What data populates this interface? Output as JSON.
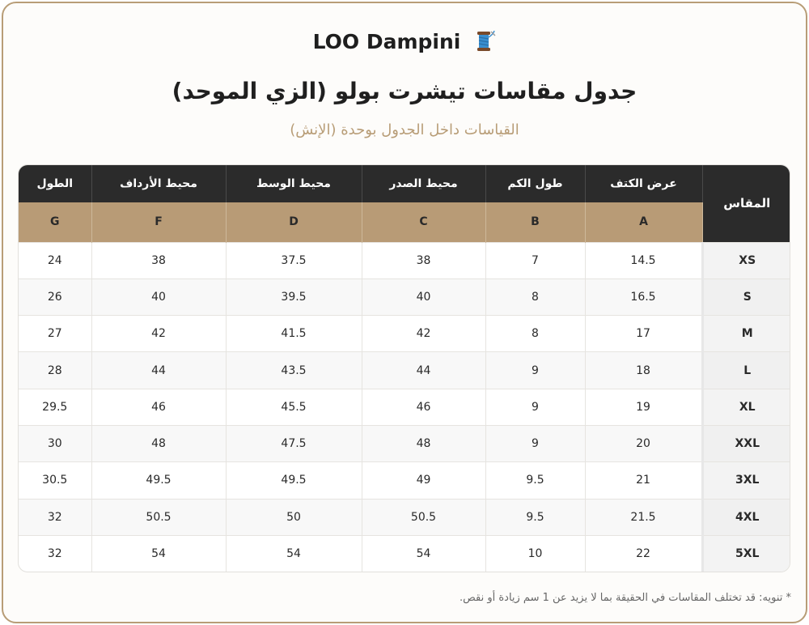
{
  "brand": {
    "name": "LOO Dampini",
    "icon": "thread-spool-icon"
  },
  "title": "جدول مقاسات تيشرت بولو (الزي الموحد)",
  "subtitle": "القياسات داخل الجدول بوحدة (الإنش)",
  "table": {
    "size_header": "المقاس",
    "columns": [
      {
        "ar": "الطول",
        "code": "G"
      },
      {
        "ar": "محيط الأرداف",
        "code": "F"
      },
      {
        "ar": "محيط الوسط",
        "code": "D"
      },
      {
        "ar": "محيط الصدر",
        "code": "C"
      },
      {
        "ar": "طول الكم",
        "code": "B"
      },
      {
        "ar": "عرض الكتف",
        "code": "A"
      }
    ],
    "rows": [
      {
        "size": "XS",
        "values": [
          "24",
          "38",
          "37.5",
          "38",
          "7",
          "14.5"
        ]
      },
      {
        "size": "S",
        "values": [
          "26",
          "40",
          "39.5",
          "40",
          "8",
          "16.5"
        ]
      },
      {
        "size": "M",
        "values": [
          "27",
          "42",
          "41.5",
          "42",
          "8",
          "17"
        ]
      },
      {
        "size": "L",
        "values": [
          "28",
          "44",
          "43.5",
          "44",
          "9",
          "18"
        ]
      },
      {
        "size": "XL",
        "values": [
          "29.5",
          "46",
          "45.5",
          "46",
          "9",
          "19"
        ]
      },
      {
        "size": "XXL",
        "values": [
          "30",
          "48",
          "47.5",
          "48",
          "9",
          "20"
        ]
      },
      {
        "size": "3XL",
        "values": [
          "30.5",
          "49.5",
          "49.5",
          "49",
          "9.5",
          "21"
        ]
      },
      {
        "size": "4XL",
        "values": [
          "32",
          "50.5",
          "50",
          "50.5",
          "9.5",
          "21.5"
        ]
      },
      {
        "size": "5XL",
        "values": [
          "32",
          "54",
          "54",
          "54",
          "10",
          "22"
        ]
      }
    ]
  },
  "note": "* تنويه: قد تختلف المقاسات في الحقيقة بما لا يزيد عن 1 سم زيادة أو نقص.",
  "colors": {
    "accent": "#b89b76",
    "header_dark": "#2b2b2b",
    "frame": "#b89d77"
  }
}
